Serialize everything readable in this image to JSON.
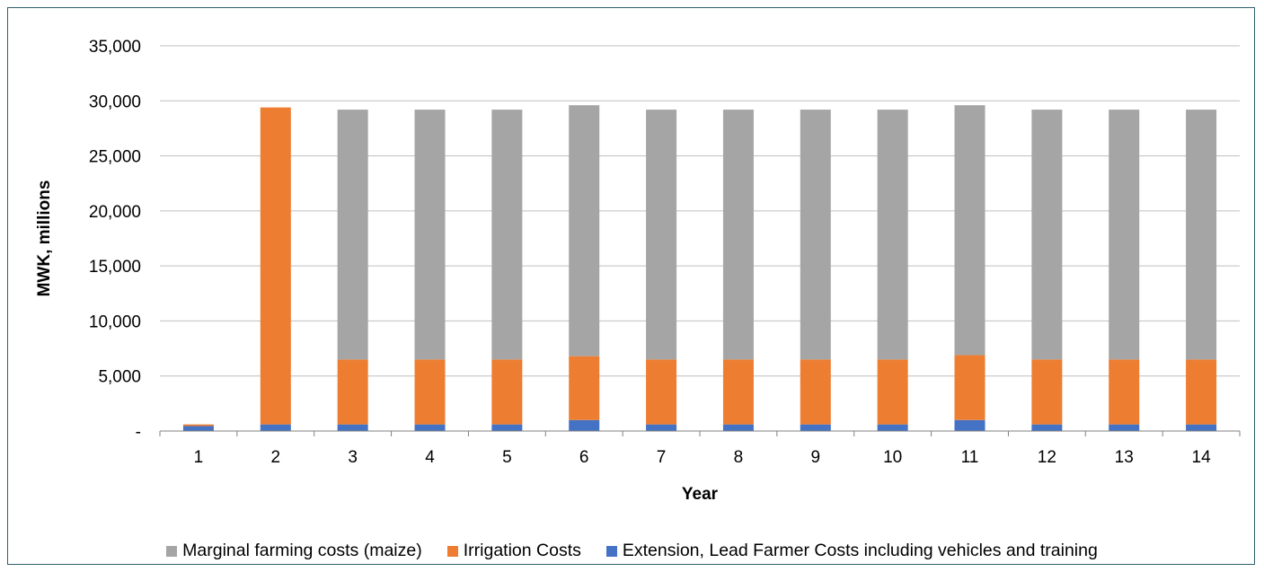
{
  "chart_data": {
    "type": "bar",
    "stacked": true,
    "title": "",
    "xlabel": "Year",
    "ylabel": "MWK, millions",
    "ylim": [
      0,
      35000
    ],
    "yticks": [
      0,
      5000,
      10000,
      15000,
      20000,
      25000,
      30000,
      35000
    ],
    "ytick_labels": [
      "-",
      "5,000",
      "10,000",
      "15,000",
      "20,000",
      "25,000",
      "30,000",
      "35,000"
    ],
    "categories": [
      "1",
      "2",
      "3",
      "4",
      "5",
      "6",
      "7",
      "8",
      "9",
      "10",
      "11",
      "12",
      "13",
      "14"
    ],
    "grid": true,
    "legend_position": "bottom",
    "series": [
      {
        "name": "Extension, Lead Farmer Costs including vehicles and training",
        "color": "#4472c4",
        "values": [
          450,
          600,
          600,
          600,
          600,
          1000,
          600,
          600,
          600,
          600,
          1000,
          600,
          600,
          600
        ]
      },
      {
        "name": "Irrigation Costs",
        "color": "#ed7d31",
        "values": [
          150,
          28800,
          5900,
          5900,
          5900,
          5800,
          5900,
          5900,
          5900,
          5900,
          5900,
          5900,
          5900,
          5900
        ]
      },
      {
        "name": "Marginal farming costs (maize)",
        "color": "#a5a5a5",
        "values": [
          0,
          0,
          22700,
          22700,
          22700,
          22800,
          22700,
          22700,
          22700,
          22700,
          22700,
          22700,
          22700,
          22700
        ]
      }
    ],
    "legend_order": [
      "Marginal farming costs (maize)",
      "Irrigation Costs",
      "Extension, Lead Farmer Costs including vehicles and training"
    ]
  }
}
